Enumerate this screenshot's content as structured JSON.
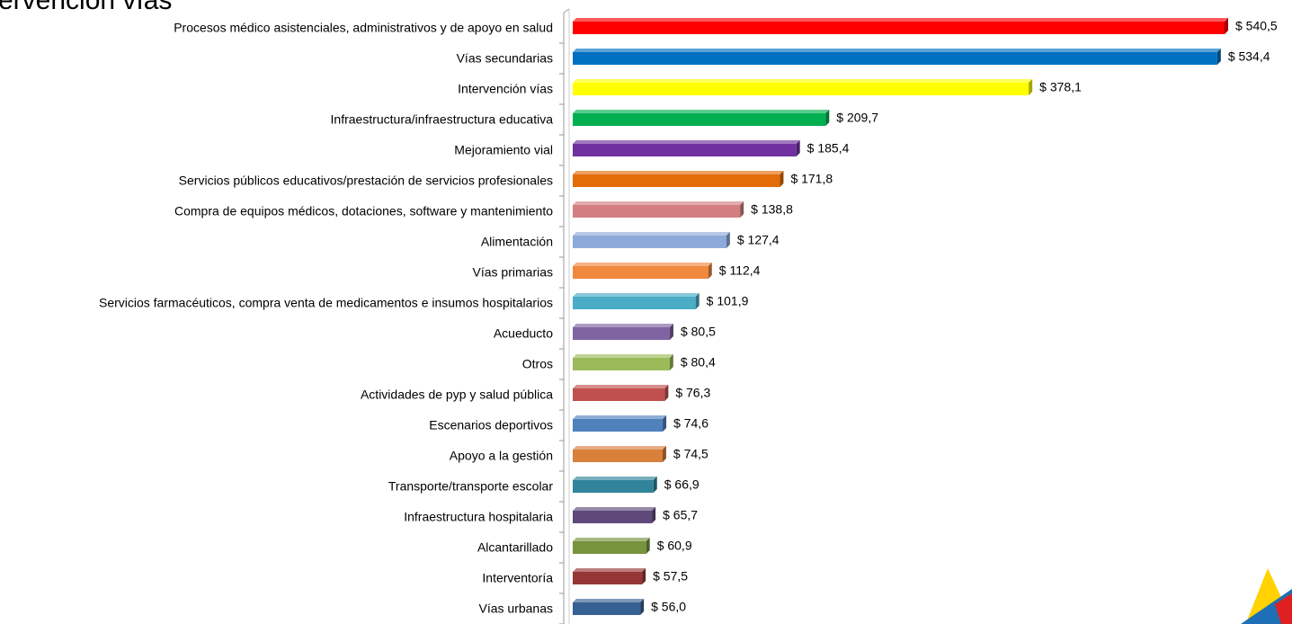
{
  "chart_data": {
    "type": "bar",
    "orientation": "horizontal",
    "title": "ervención vías",
    "categories": [
      "Procesos médico asistenciales, administrativos y de apoyo en salud",
      "Vías secundarias",
      "Intervención vías",
      "Infraestructura/infraestructura educativa",
      "Mejoramiento vial",
      "Servicios públicos educativos/prestación de servicios profesionales",
      "Compra de equipos médicos, dotaciones, software y mantenimiento",
      "Alimentación",
      "Vías primarias",
      "Servicios farmacéuticos, compra venta de medicamentos e insumos hospitalarios",
      "Acueducto",
      "Otros",
      "Actividades de pyp y salud pública",
      "Escenarios deportivos",
      "Apoyo a la gestión",
      "Transporte/transporte escolar",
      "Infraestructura hospitalaria",
      "Alcantarillado",
      "Interventoría",
      "Vías urbanas"
    ],
    "values": [
      540.5,
      534.4,
      378.1,
      209.7,
      185.4,
      171.8,
      138.8,
      127.4,
      112.4,
      101.9,
      80.5,
      80.4,
      76.3,
      74.6,
      74.5,
      66.9,
      65.7,
      60.9,
      57.5,
      56.0
    ],
    "value_labels": [
      "$ 540,5",
      "$ 534,4",
      "$ 378,1",
      "$ 209,7",
      "$ 185,4",
      "$ 171,8",
      "$ 138,8",
      "$ 127,4",
      "$ 112,4",
      "$ 101,9",
      "$ 80,5",
      "$ 80,4",
      "$ 76,3",
      "$ 74,6",
      "$ 74,5",
      "$ 66,9",
      "$ 65,7",
      "$ 60,9",
      "$ 57,5",
      "$ 56,0"
    ],
    "colors": [
      "#ff0000",
      "#0070c0",
      "#ffff00",
      "#00b050",
      "#7030a0",
      "#e36c09",
      "#d47f7f",
      "#8eaadb",
      "#f0883e",
      "#4bacc6",
      "#8064a2",
      "#9bbb59",
      "#c0504d",
      "#4f81bd",
      "#d9803a",
      "#31849b",
      "#5f497a",
      "#77933c",
      "#953735",
      "#376092"
    ]
  }
}
